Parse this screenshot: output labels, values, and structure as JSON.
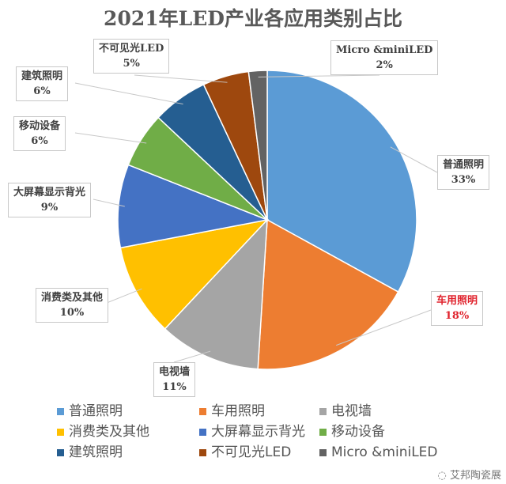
{
  "chart_data": {
    "type": "pie",
    "title": "2021年LED产业各应用类别占比",
    "unit": "%",
    "start_angle": "12 o'clock",
    "direction": "clockwise",
    "legend_position": "bottom",
    "slices": [
      {
        "name": "普通照明",
        "value": 33,
        "label": "33%",
        "color": "#5b9bd5"
      },
      {
        "name": "车用照明",
        "value": 18,
        "label": "18%",
        "color": "#ed7d31",
        "highlight_color": "#e0232d"
      },
      {
        "name": "电视墙",
        "value": 11,
        "label": "11%",
        "color": "#a5a5a5"
      },
      {
        "name": "消费类及其他",
        "value": 10,
        "label": "10%",
        "color": "#ffc000"
      },
      {
        "name": "大屏幕显示背光",
        "value": 9,
        "label": "9%",
        "color": "#4472c4"
      },
      {
        "name": "移动设备",
        "value": 6,
        "label": "6%",
        "color": "#70ad47"
      },
      {
        "name": "建筑照明",
        "value": 6,
        "label": "6%",
        "color": "#255e91"
      },
      {
        "name": "不可见光LED",
        "value": 5,
        "label": "5%",
        "color": "#9e480e"
      },
      {
        "name": "Micro &miniLED",
        "value": 2,
        "label": "2%",
        "color": "#636363"
      }
    ]
  },
  "watermark": {
    "text": "艾邦陶瓷展",
    "icon": "wechat-icon"
  }
}
